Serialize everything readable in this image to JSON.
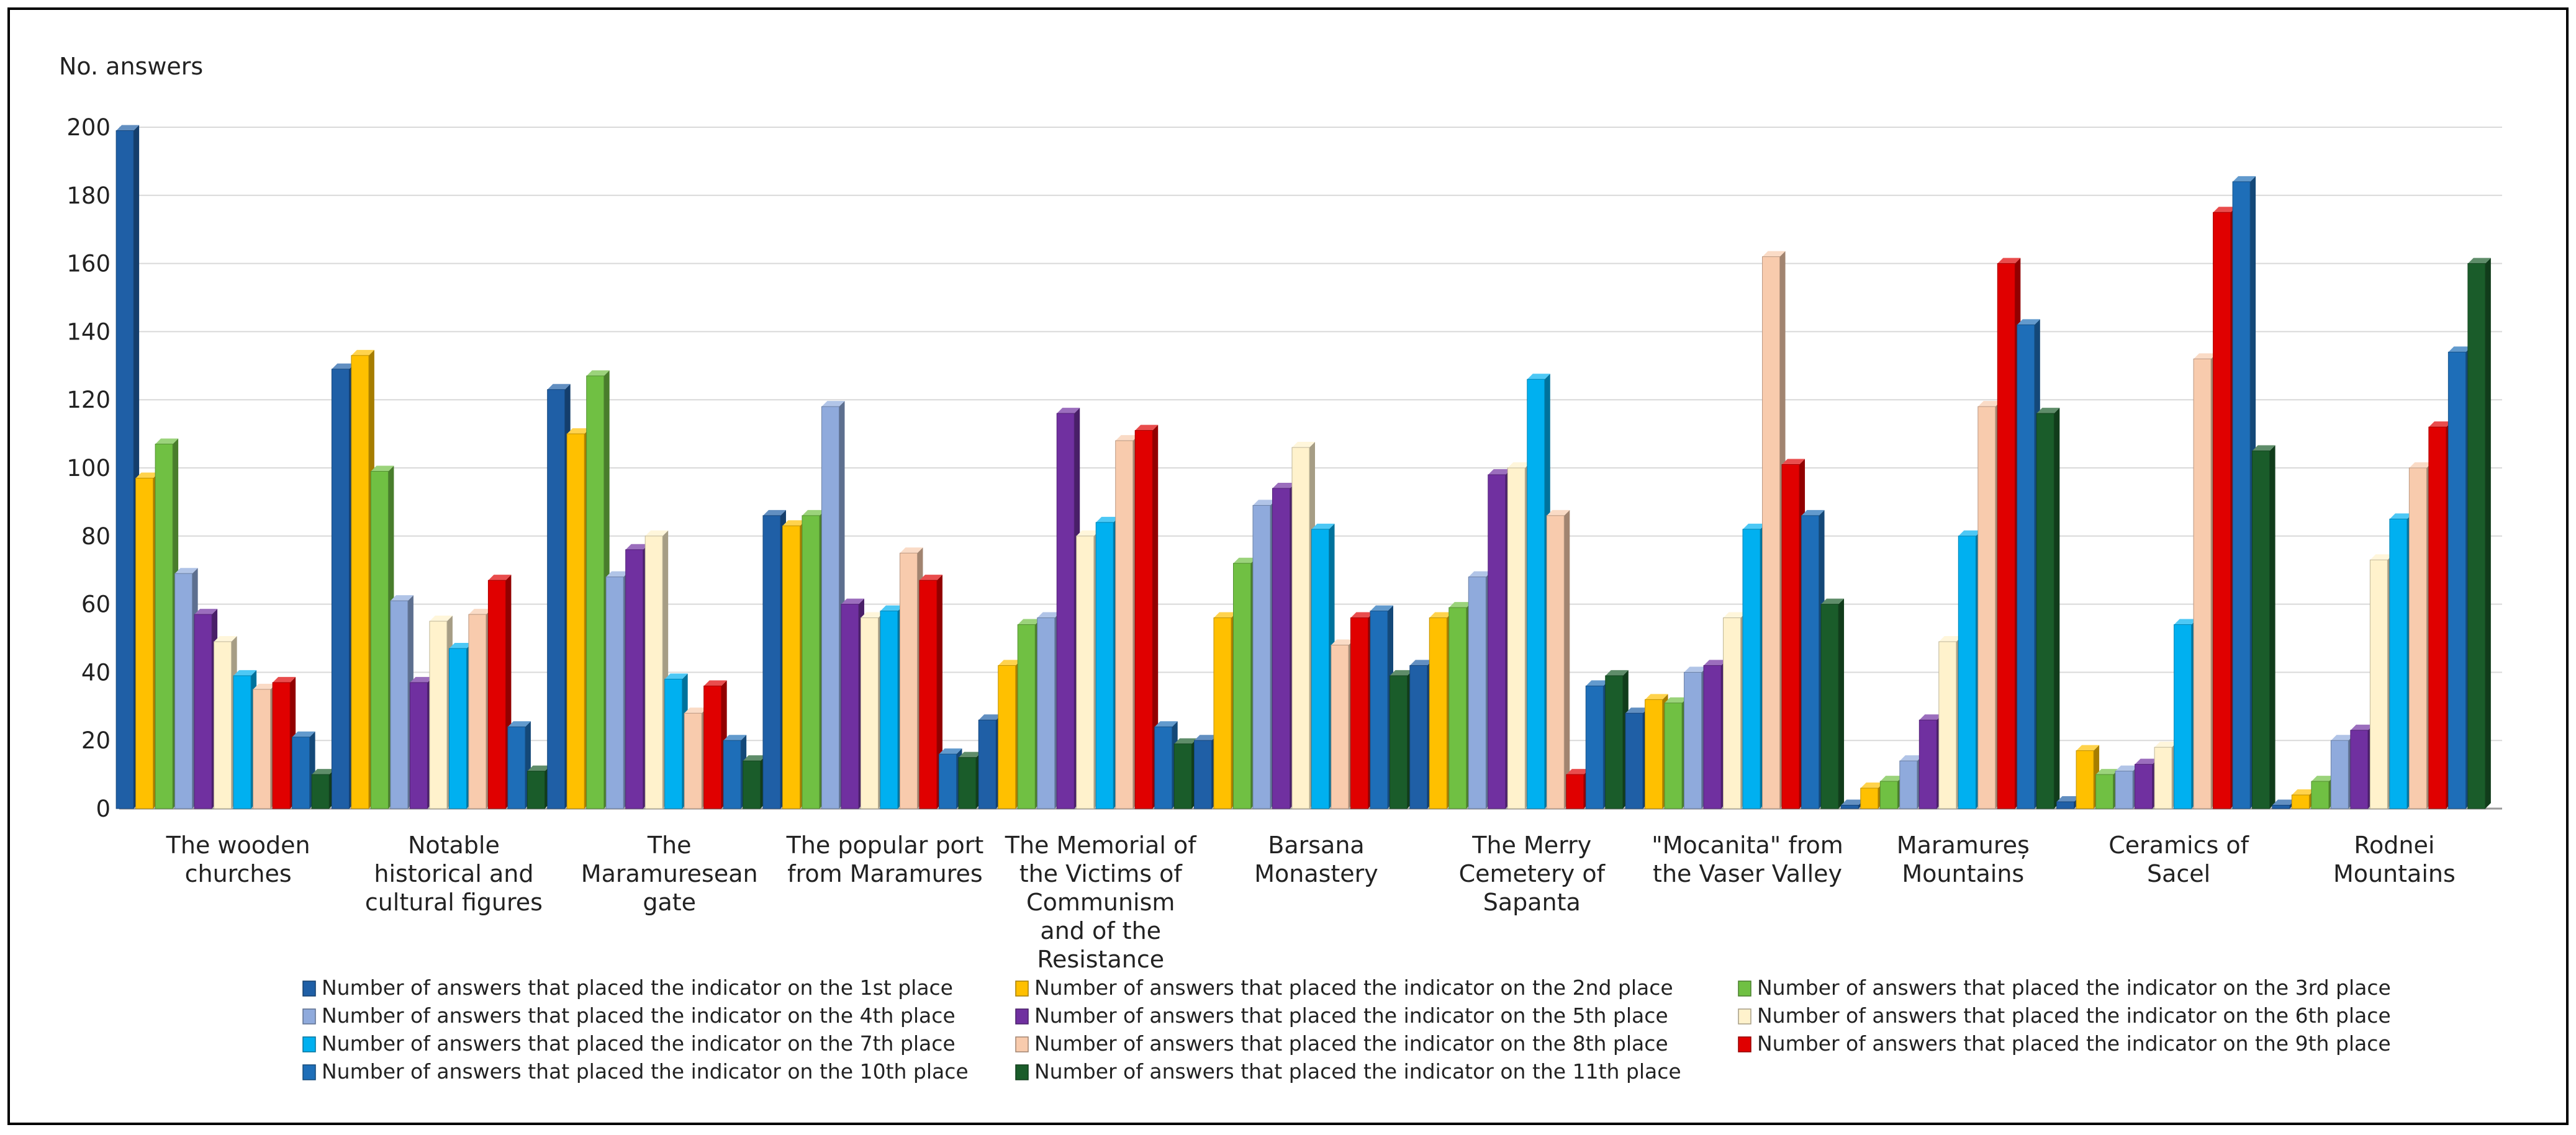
{
  "chart_data": {
    "type": "bar",
    "ylabel": "No. answers",
    "xlabel": "",
    "title": "",
    "ylim": [
      0,
      200
    ],
    "yticks": [
      0,
      20,
      40,
      60,
      80,
      100,
      120,
      140,
      160,
      180,
      200
    ],
    "grid": true,
    "legend_position": "bottom",
    "categories": [
      [
        "The wooden",
        "churches"
      ],
      [
        "Notable",
        "historical and",
        "cultural figures"
      ],
      [
        "The",
        "Maramuresean",
        "gate"
      ],
      [
        "The popular port",
        "from Maramures"
      ],
      [
        "The Memorial of",
        "the Victims of",
        "Communism",
        "and of the",
        "Resistance"
      ],
      [
        "Barsana",
        "Monastery"
      ],
      [
        "The Merry",
        "Cemetery of",
        "Sapanta"
      ],
      [
        "\"Mocanita\" from",
        "the Vaser Valley"
      ],
      [
        "Maramureș",
        "Mountains"
      ],
      [
        "Ceramics of",
        "Sacel"
      ],
      [
        "Rodnei",
        "Mountains"
      ]
    ],
    "series": [
      {
        "name": "Number of answers that placed the indicator on the 1st place",
        "color": "#1f5fa6",
        "values": [
          199,
          129,
          123,
          86,
          26,
          20,
          42,
          28,
          1,
          2,
          1
        ]
      },
      {
        "name": "Number of answers that placed the indicator on the 2nd place",
        "color": "#ffc000",
        "values": [
          97,
          133,
          110,
          83,
          42,
          56,
          56,
          32,
          6,
          17,
          4
        ]
      },
      {
        "name": "Number of answers that placed the indicator on the 3rd place",
        "color": "#70c043",
        "values": [
          107,
          99,
          127,
          86,
          54,
          72,
          59,
          31,
          8,
          10,
          8
        ]
      },
      {
        "name": "Number of answers that placed the indicator on the 4th place",
        "color": "#8faadc",
        "values": [
          69,
          61,
          68,
          118,
          56,
          89,
          68,
          40,
          14,
          11,
          20
        ]
      },
      {
        "name": "Number of answers that placed the indicator on the 5th place",
        "color": "#7030a0",
        "values": [
          57,
          37,
          76,
          60,
          116,
          94,
          98,
          42,
          26,
          13,
          23
        ]
      },
      {
        "name": "Number of answers that placed the indicator on the 6th place",
        "color": "#fff2cc",
        "values": [
          49,
          55,
          80,
          56,
          80,
          106,
          100,
          56,
          49,
          18,
          73
        ]
      },
      {
        "name": "Number of answers that placed the indicator on the 7th place",
        "color": "#00b0f0",
        "values": [
          39,
          47,
          38,
          58,
          84,
          82,
          126,
          82,
          80,
          54,
          85
        ]
      },
      {
        "name": "Number of answers that placed the indicator on the 8th place",
        "color": "#f8cbad",
        "values": [
          35,
          57,
          28,
          75,
          108,
          48,
          86,
          162,
          118,
          132,
          100
        ]
      },
      {
        "name": "Number of answers that placed the indicator on the 9th place",
        "color": "#e00000",
        "values": [
          37,
          67,
          36,
          67,
          111,
          56,
          10,
          101,
          160,
          175,
          112
        ]
      },
      {
        "name": "Number of answers that placed the indicator on the 10th place",
        "color": "#1e6eb8",
        "values": [
          21,
          24,
          20,
          16,
          24,
          58,
          36,
          86,
          142,
          184,
          134
        ]
      },
      {
        "name": "Number of answers that placed the indicator on the 11th place",
        "color": "#1a5c2a",
        "values": [
          10,
          11,
          14,
          15,
          19,
          39,
          39,
          60,
          116,
          105,
          160
        ]
      }
    ]
  }
}
